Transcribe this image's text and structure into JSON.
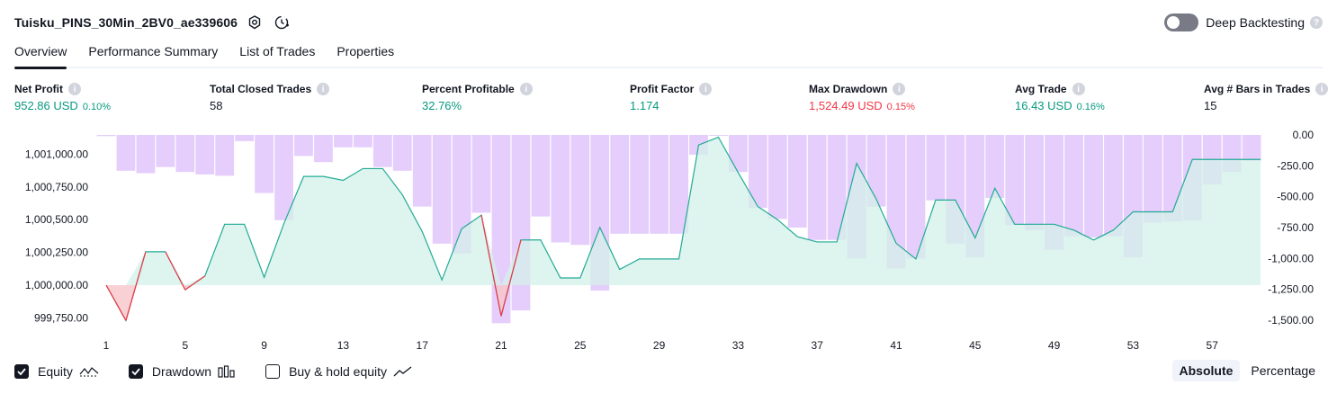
{
  "header": {
    "title": "Tuisku_PINS_30Min_2BV0_ae339606",
    "deep_backtesting_label": "Deep Backtesting"
  },
  "tabs": [
    "Overview",
    "Performance Summary",
    "List of Trades",
    "Properties"
  ],
  "metrics": [
    {
      "label": "Net Profit",
      "value": "952.86 USD",
      "pct": "0.10%",
      "color": "green"
    },
    {
      "label": "Total Closed Trades",
      "value": "58",
      "pct": "",
      "color": "dark"
    },
    {
      "label": "Percent Profitable",
      "value": "32.76%",
      "pct": "",
      "color": "green"
    },
    {
      "label": "Profit Factor",
      "value": "1.174",
      "pct": "",
      "color": "green"
    },
    {
      "label": "Max Drawdown",
      "value": "1,524.49 USD",
      "pct": "0.15%",
      "color": "red"
    },
    {
      "label": "Avg Trade",
      "value": "16.43 USD",
      "pct": "0.16%",
      "color": "green"
    },
    {
      "label": "Avg # Bars in Trades",
      "value": "15",
      "pct": "",
      "color": "dark"
    }
  ],
  "legend": {
    "equity": "Equity",
    "drawdown": "Drawdown",
    "buy_hold": "Buy & hold equity"
  },
  "toggle": {
    "absolute": "Absolute",
    "percentage": "Percentage"
  },
  "colors": {
    "equity_line": "#22ab94",
    "equity_fill": "#d3f0e9",
    "loss": "#f23645",
    "drawdown_bar": "#e1c4fb",
    "text": "#131722"
  },
  "chart_data": {
    "type": "area",
    "x_ticks": [
      "1",
      "5",
      "9",
      "13",
      "17",
      "21",
      "25",
      "29",
      "33",
      "37",
      "41",
      "45",
      "49",
      "53",
      "57"
    ],
    "y_left_ticks": [
      "1,001,000.00",
      "1,000,750.00",
      "1,000,500.00",
      "1,000,250.00",
      "1,000,000.00",
      "999,750.00"
    ],
    "y_right_ticks": [
      "0.00",
      "-250.00",
      "-500.00",
      "-750.00",
      "-1,000.00",
      "-1,250.00",
      "-1,500.00"
    ],
    "equity": {
      "name": "Equity",
      "x": [
        1,
        2,
        3,
        4,
        5,
        6,
        7,
        8,
        9,
        10,
        11,
        12,
        13,
        14,
        15,
        16,
        17,
        18,
        19,
        20,
        21,
        22,
        23,
        24,
        25,
        26,
        27,
        28,
        29,
        30,
        31,
        32,
        33,
        34,
        35,
        36,
        37,
        38,
        39,
        40,
        41,
        42,
        43,
        44,
        45,
        46,
        47,
        48,
        49,
        50,
        51,
        52,
        53,
        54,
        55,
        56,
        57,
        58,
        59
      ],
      "y": [
        1000000,
        999730,
        1000255,
        1000255,
        999965,
        1000070,
        1000465,
        1000465,
        1000060,
        1000470,
        1000830,
        1000830,
        1000800,
        1000890,
        1000890,
        1000690,
        1000410,
        1000040,
        1000430,
        1000535,
        999765,
        1000345,
        1000345,
        1000055,
        1000055,
        1000440,
        1000120,
        1000200,
        1000200,
        1000200,
        1001070,
        1001130,
        1000860,
        1000600,
        1000500,
        1000370,
        1000330,
        1000330,
        1000930,
        1000655,
        1000320,
        1000200,
        1000650,
        1000650,
        1000360,
        1000740,
        1000465,
        1000465,
        1000465,
        1000420,
        1000345,
        1000420,
        1000560,
        1000560,
        1000560,
        1000960,
        1000960,
        1000960,
        1000960
      ]
    },
    "drawdown": {
      "name": "Drawdown",
      "x": [
        1,
        2,
        3,
        4,
        5,
        6,
        7,
        8,
        9,
        10,
        11,
        12,
        13,
        14,
        15,
        16,
        17,
        18,
        19,
        20,
        21,
        22,
        23,
        24,
        25,
        26,
        27,
        28,
        29,
        30,
        31,
        32,
        33,
        34,
        35,
        36,
        37,
        38,
        39,
        40,
        41,
        42,
        43,
        44,
        45,
        46,
        47,
        48,
        49,
        50,
        51,
        52,
        53,
        54,
        55,
        56,
        57,
        58,
        59
      ],
      "y": [
        -10,
        -290,
        -310,
        -260,
        -300,
        -320,
        -330,
        -50,
        -470,
        -690,
        -170,
        -220,
        -100,
        -100,
        -260,
        -290,
        -580,
        -880,
        -960,
        -630,
        -1524,
        -1420,
        -660,
        -870,
        -890,
        -1260,
        -800,
        -800,
        -800,
        -800,
        -160,
        0,
        -300,
        -590,
        -680,
        -750,
        -850,
        -850,
        -1000,
        -580,
        -1080,
        -1000,
        -530,
        -880,
        -990,
        -510,
        -730,
        -770,
        -930,
        -820,
        -830,
        -820,
        -990,
        -710,
        -700,
        -690,
        -400,
        -300,
        -210
      ]
    }
  }
}
